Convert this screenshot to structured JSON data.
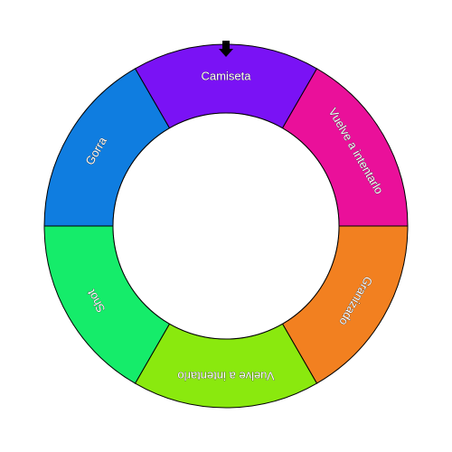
{
  "wheel": {
    "segments": [
      {
        "label": "Camiseta",
        "color": "#7a12f5"
      },
      {
        "label": "Vuelve a intentarlo",
        "color": "#ea109a"
      },
      {
        "label": "Granizado",
        "color": "#f28020"
      },
      {
        "label": "Vuelve a intentarlo",
        "color": "#8ae90e"
      },
      {
        "label": "Shot",
        "color": "#15ec6a"
      },
      {
        "label": "Gorra",
        "color": "#0f7de0"
      }
    ],
    "pointer_icon": "arrow-down-icon",
    "pointer_color": "#000000",
    "border_color": "#000000",
    "hub_color": "#ffffff"
  }
}
